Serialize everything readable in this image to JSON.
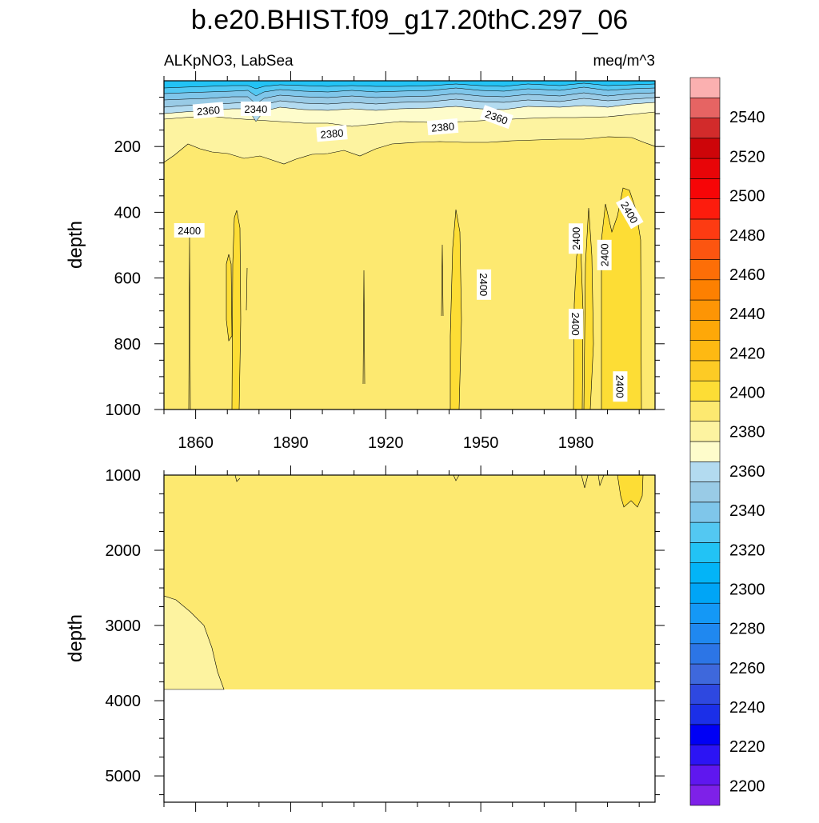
{
  "title": "b.e20.BHIST.f09_g17.20thC.297_06",
  "variable_label": "ALKpNO3, LabSea",
  "units_label": "meq/m^3",
  "colors": {
    "background": "#ffffff",
    "fill_2380": "#fdf3a0",
    "fill_2390": "#fde970",
    "fill_2400": "#fddd35",
    "fill_2370": "#fefccb"
  },
  "chart_data": [
    {
      "type": "contour",
      "panel": "upper",
      "xlabel": "",
      "ylabel": "depth",
      "xlim": [
        1850,
        2005
      ],
      "ylim": [
        1000,
        0
      ],
      "x_ticks": [
        1860,
        1890,
        1920,
        1950,
        1980
      ],
      "x_tick_labels": [
        "1860",
        "1890",
        "1920",
        "1950",
        "1980"
      ],
      "y_ticks": [
        200,
        400,
        600,
        800,
        1000
      ],
      "y_tick_labels": [
        "200",
        "400",
        "600",
        "800",
        "1000"
      ],
      "contour_labels": [
        {
          "text": "2360",
          "x": 1864,
          "y": 90
        },
        {
          "text": "2340",
          "x": 1879,
          "y": 85
        },
        {
          "text": "2380",
          "x": 1903,
          "y": 160
        },
        {
          "text": "2380",
          "x": 1938,
          "y": 140
        },
        {
          "text": "2360",
          "x": 1955,
          "y": 110
        },
        {
          "text": "2400",
          "x": 1858,
          "y": 455
        },
        {
          "text": "2400",
          "x": 1951,
          "y": 620
        },
        {
          "text": "2400",
          "x": 1980,
          "y": 480
        },
        {
          "text": "2400",
          "x": 1980,
          "y": 740
        },
        {
          "text": "2400",
          "x": 1989,
          "y": 530
        },
        {
          "text": "2400",
          "x": 1997,
          "y": 400
        },
        {
          "text": "2400",
          "x": 1994,
          "y": 930
        }
      ],
      "regions": [
        {
          "level": "2320-2370",
          "description": "surface layer",
          "depth_range": [
            0,
            120
          ]
        },
        {
          "level": "2370-2390",
          "depth_range": [
            100,
            250
          ]
        },
        {
          "level": "2390-2400",
          "depth_range": [
            200,
            1000
          ]
        },
        {
          "level": "2400-2410",
          "description": "vertical cores near 1875, 1940, 1980-2000"
        }
      ]
    },
    {
      "type": "contour",
      "panel": "lower",
      "xlabel": "",
      "ylabel": "depth",
      "xlim": [
        1850,
        2005
      ],
      "ylim": [
        5350,
        1000
      ],
      "y_ticks": [
        1000,
        2000,
        3000,
        4000,
        5000
      ],
      "y_tick_labels": [
        "1000",
        "2000",
        "3000",
        "4000",
        "5000"
      ],
      "regions": [
        {
          "level": "2390-2400",
          "depth_range": [
            1000,
            3870
          ]
        },
        {
          "level": "2380-2390",
          "description": "bottom-left wedge",
          "depth_range": [
            2650,
            3870
          ]
        },
        {
          "level": "2400-2410",
          "description": "patch near 1990-2000",
          "depth_range": [
            1000,
            1450
          ]
        },
        {
          "level": "missing",
          "description": "below sea floor",
          "depth_range": [
            3870,
            5350
          ]
        }
      ]
    },
    {
      "type": "colorbar",
      "min": 2190,
      "max": 2560,
      "step": 10,
      "label_values": [
        2200,
        2220,
        2240,
        2260,
        2280,
        2300,
        2320,
        2340,
        2360,
        2380,
        2400,
        2420,
        2440,
        2460,
        2480,
        2500,
        2520,
        2540
      ],
      "label_texts": [
        "2200",
        "2220",
        "2240",
        "2260",
        "2280",
        "2300",
        "2320",
        "2340",
        "2360",
        "2380",
        "2400",
        "2420",
        "2440",
        "2460",
        "2480",
        "2500",
        "2520",
        "2540"
      ],
      "colors": [
        "#7e21e8",
        "#5f17ef",
        "#2c14f4",
        "#0000f5",
        "#1b2fe8",
        "#2e48e0",
        "#3e68dc",
        "#2c75e6",
        "#1f88f0",
        "#1498f6",
        "#00a5f6",
        "#03b4f7",
        "#22c3f5",
        "#53c8f2",
        "#7fc6ea",
        "#99cbe6",
        "#b3dbf0",
        "#fefccb",
        "#fdf3a0",
        "#fde970",
        "#fddd35",
        "#fdcb25",
        "#feb912",
        "#fea808",
        "#fd9505",
        "#fd8001",
        "#fd6e07",
        "#fc5510",
        "#fd3b12",
        "#fd1c0d",
        "#f70507",
        "#e80508",
        "#cd0509",
        "#d22b2b",
        "#e66463",
        "#fbb0b0"
      ]
    }
  ]
}
